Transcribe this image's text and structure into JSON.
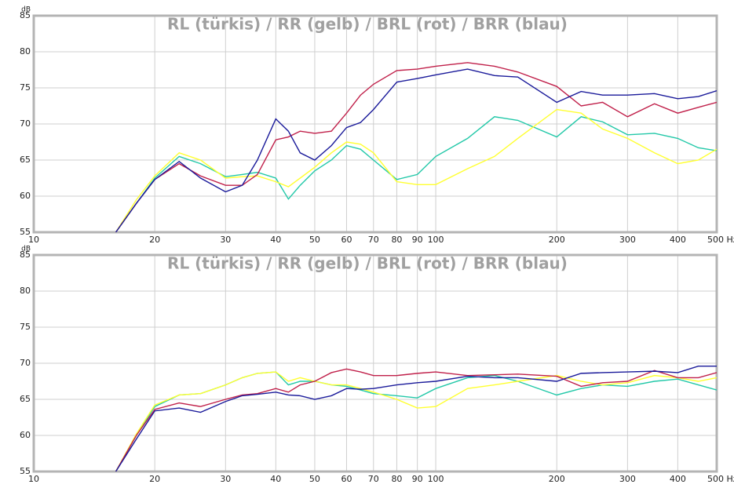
{
  "chart_data": [
    {
      "type": "line",
      "title": "RL (türkis) / RR (gelb) / BRL (rot) / BRR (blau)",
      "y_label": "dB",
      "xscale": "log",
      "grid": true,
      "xlim": [
        10,
        500
      ],
      "ylim": [
        55,
        85
      ],
      "xticks": [
        10,
        20,
        30,
        40,
        50,
        60,
        70,
        80,
        90,
        100,
        200,
        300,
        400,
        {
          "value": 500,
          "label": "500 Hz"
        }
      ],
      "yticks": [
        55,
        60,
        65,
        70,
        75,
        80,
        85
      ],
      "x": [
        16,
        18,
        20,
        23,
        26,
        30,
        33,
        36,
        40,
        43,
        46,
        50,
        55,
        60,
        65,
        70,
        80,
        90,
        100,
        120,
        140,
        160,
        200,
        230,
        260,
        300,
        350,
        400,
        450,
        500
      ],
      "series": [
        {
          "color": "#22c8a8",
          "values": [
            55,
            59,
            62.5,
            65.5,
            64.5,
            62.7,
            63,
            63.3,
            62.5,
            59.6,
            61.5,
            63.5,
            65,
            67,
            66.5,
            65,
            62.3,
            63,
            65.5,
            68,
            71,
            70.5,
            68.2,
            71,
            70.3,
            68.5,
            68.7,
            68,
            66.7,
            66.3
          ]
        },
        {
          "color": "#ffff30",
          "values": [
            55,
            59.5,
            62.8,
            66,
            65,
            62.5,
            62.7,
            62.8,
            62,
            61.3,
            62.5,
            64,
            66,
            67.5,
            67.2,
            66,
            62,
            61.6,
            61.6,
            63.8,
            65.5,
            68,
            72,
            71.5,
            69.3,
            68,
            66,
            64.5,
            65,
            66.5
          ]
        },
        {
          "color": "#c0204a",
          "values": [
            55,
            59,
            62.3,
            64.5,
            62.8,
            61.5,
            61.5,
            63,
            67.8,
            68.2,
            69,
            68.7,
            69,
            71.5,
            74,
            75.5,
            77.4,
            77.6,
            78,
            78.5,
            78,
            77.2,
            75.2,
            72.5,
            73,
            71,
            72.8,
            71.5,
            72.3,
            73
          ]
        },
        {
          "color": "#1a1a9a",
          "values": [
            55,
            59,
            62.3,
            64.8,
            62.5,
            60.6,
            61.5,
            65,
            70.7,
            69,
            66,
            65,
            67,
            69.5,
            70.2,
            72,
            75.8,
            76.3,
            76.8,
            77.6,
            76.7,
            76.5,
            73,
            74.5,
            74,
            74,
            74.2,
            73.5,
            73.8,
            74.6
          ]
        }
      ]
    },
    {
      "type": "line",
      "title": "RL (türkis) / RR (gelb) / BRL (rot) / BRR (blau)",
      "y_label": "dB",
      "xscale": "log",
      "grid": true,
      "xlim": [
        10,
        500
      ],
      "ylim": [
        55,
        85
      ],
      "xticks": [
        10,
        20,
        30,
        40,
        50,
        60,
        70,
        80,
        90,
        100,
        200,
        300,
        400,
        {
          "value": 500,
          "label": "500 Hz"
        }
      ],
      "yticks": [
        55,
        60,
        65,
        70,
        75,
        80,
        85
      ],
      "x": [
        16,
        18,
        20,
        23,
        26,
        30,
        33,
        36,
        40,
        43,
        46,
        50,
        55,
        60,
        65,
        70,
        80,
        90,
        100,
        120,
        140,
        160,
        200,
        230,
        260,
        300,
        350,
        400,
        450,
        500
      ],
      "series": [
        {
          "color": "#22c8a8",
          "values": [
            55,
            60,
            64,
            65.6,
            65.8,
            67,
            68,
            68.6,
            68.8,
            67,
            67.5,
            67.5,
            67,
            66.8,
            66.3,
            65.8,
            65.5,
            65.2,
            66.5,
            68,
            68.3,
            67.5,
            65.6,
            66.5,
            67,
            66.8,
            67.5,
            67.8,
            67,
            66.3
          ]
        },
        {
          "color": "#ffff30",
          "values": [
            55,
            60.2,
            64.2,
            65.6,
            65.8,
            67,
            68,
            68.6,
            68.8,
            67.5,
            68,
            67.5,
            67,
            67,
            66.5,
            66,
            65,
            63.8,
            64,
            66.5,
            67,
            67.5,
            68.3,
            67.5,
            67,
            67.3,
            68.3,
            68,
            67.5,
            68
          ]
        },
        {
          "color": "#c0204a",
          "values": [
            55,
            60,
            63.6,
            64.5,
            64,
            65,
            65.6,
            65.8,
            66.5,
            66,
            67,
            67.5,
            68.7,
            69.2,
            68.8,
            68.3,
            68.3,
            68.6,
            68.8,
            68.3,
            68.4,
            68.5,
            68.2,
            66.8,
            67.3,
            67.5,
            69,
            68,
            68,
            68.7
          ]
        },
        {
          "color": "#1a1a9a",
          "values": [
            55,
            59.5,
            63.4,
            63.8,
            63.2,
            64.7,
            65.5,
            65.7,
            66,
            65.6,
            65.5,
            65,
            65.5,
            66.5,
            66.4,
            66.5,
            67,
            67.3,
            67.5,
            68.2,
            68,
            68,
            67.5,
            68.6,
            68.7,
            68.8,
            68.9,
            68.7,
            69.6,
            69.6
          ]
        }
      ]
    }
  ]
}
